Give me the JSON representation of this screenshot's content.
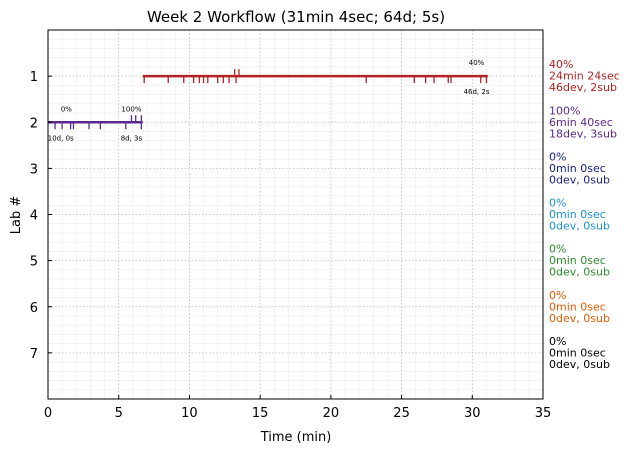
{
  "chart_data": {
    "type": "timeline",
    "title": "Week 2 Workflow (31min 4sec; 64d; 5s)",
    "xlabel": "Time (min)",
    "ylabel": "Lab #",
    "xlim": [
      0,
      35
    ],
    "ylim": [
      8,
      0
    ],
    "x_ticks": [
      0,
      5,
      10,
      15,
      20,
      25,
      30,
      35
    ],
    "y_ticks": [
      1,
      2,
      3,
      4,
      5,
      6,
      7
    ],
    "grid": true,
    "labs": [
      {
        "lab": 1,
        "color": "#b22222",
        "span": [
          6.7,
          31.1
        ],
        "percent": "40%",
        "time": "24min 24sec",
        "counts": "46dev, 2sub",
        "events_down": [
          6.8,
          8.5,
          9.6,
          10.3,
          10.7,
          11.0,
          11.3,
          12.0,
          12.4,
          12.8,
          13.3,
          22.5,
          25.9,
          26.7,
          27.3,
          28.3,
          28.5,
          30.6,
          31.0
        ],
        "events_up": [
          13.2,
          13.5
        ],
        "annotations": [
          {
            "x": 30.3,
            "pos": "above",
            "text": "40%"
          },
          {
            "x": 30.3,
            "pos": "below",
            "text": "46d, 2s"
          }
        ]
      },
      {
        "lab": 2,
        "color": "#5b2a8f",
        "span": [
          0,
          6.7
        ],
        "percent": "100%",
        "time": "6min 40sec",
        "counts": "18dev, 3sub",
        "events_down": [
          0.5,
          1.0,
          1.6,
          1.8,
          2.9,
          3.7,
          5.5,
          6.6
        ],
        "events_up": [
          5.9,
          6.2,
          6.6
        ],
        "annotations": [
          {
            "x": 1.3,
            "pos": "above",
            "text": "0%"
          },
          {
            "x": 0.9,
            "pos": "below",
            "text": "10d, 0s"
          },
          {
            "x": 5.9,
            "pos": "above",
            "text": "100%"
          },
          {
            "x": 5.9,
            "pos": "below",
            "text": "8d, 3s"
          }
        ]
      },
      {
        "lab": 3,
        "color": "#1a237e",
        "percent": "0%",
        "time": "0min 0sec",
        "counts": "0dev, 0sub"
      },
      {
        "lab": 4,
        "color": "#1e90d8",
        "percent": "0%",
        "time": "0min 0sec",
        "counts": "0dev, 0sub"
      },
      {
        "lab": 5,
        "color": "#2e8b2e",
        "percent": "0%",
        "time": "0min 0sec",
        "counts": "0dev, 0sub"
      },
      {
        "lab": 6,
        "color": "#e05a00",
        "percent": "0%",
        "time": "0min 0sec",
        "counts": "0dev, 0sub"
      },
      {
        "lab": 7,
        "color": "#000000",
        "percent": "0%",
        "time": "0min 0sec",
        "counts": "0dev, 0sub"
      }
    ]
  }
}
